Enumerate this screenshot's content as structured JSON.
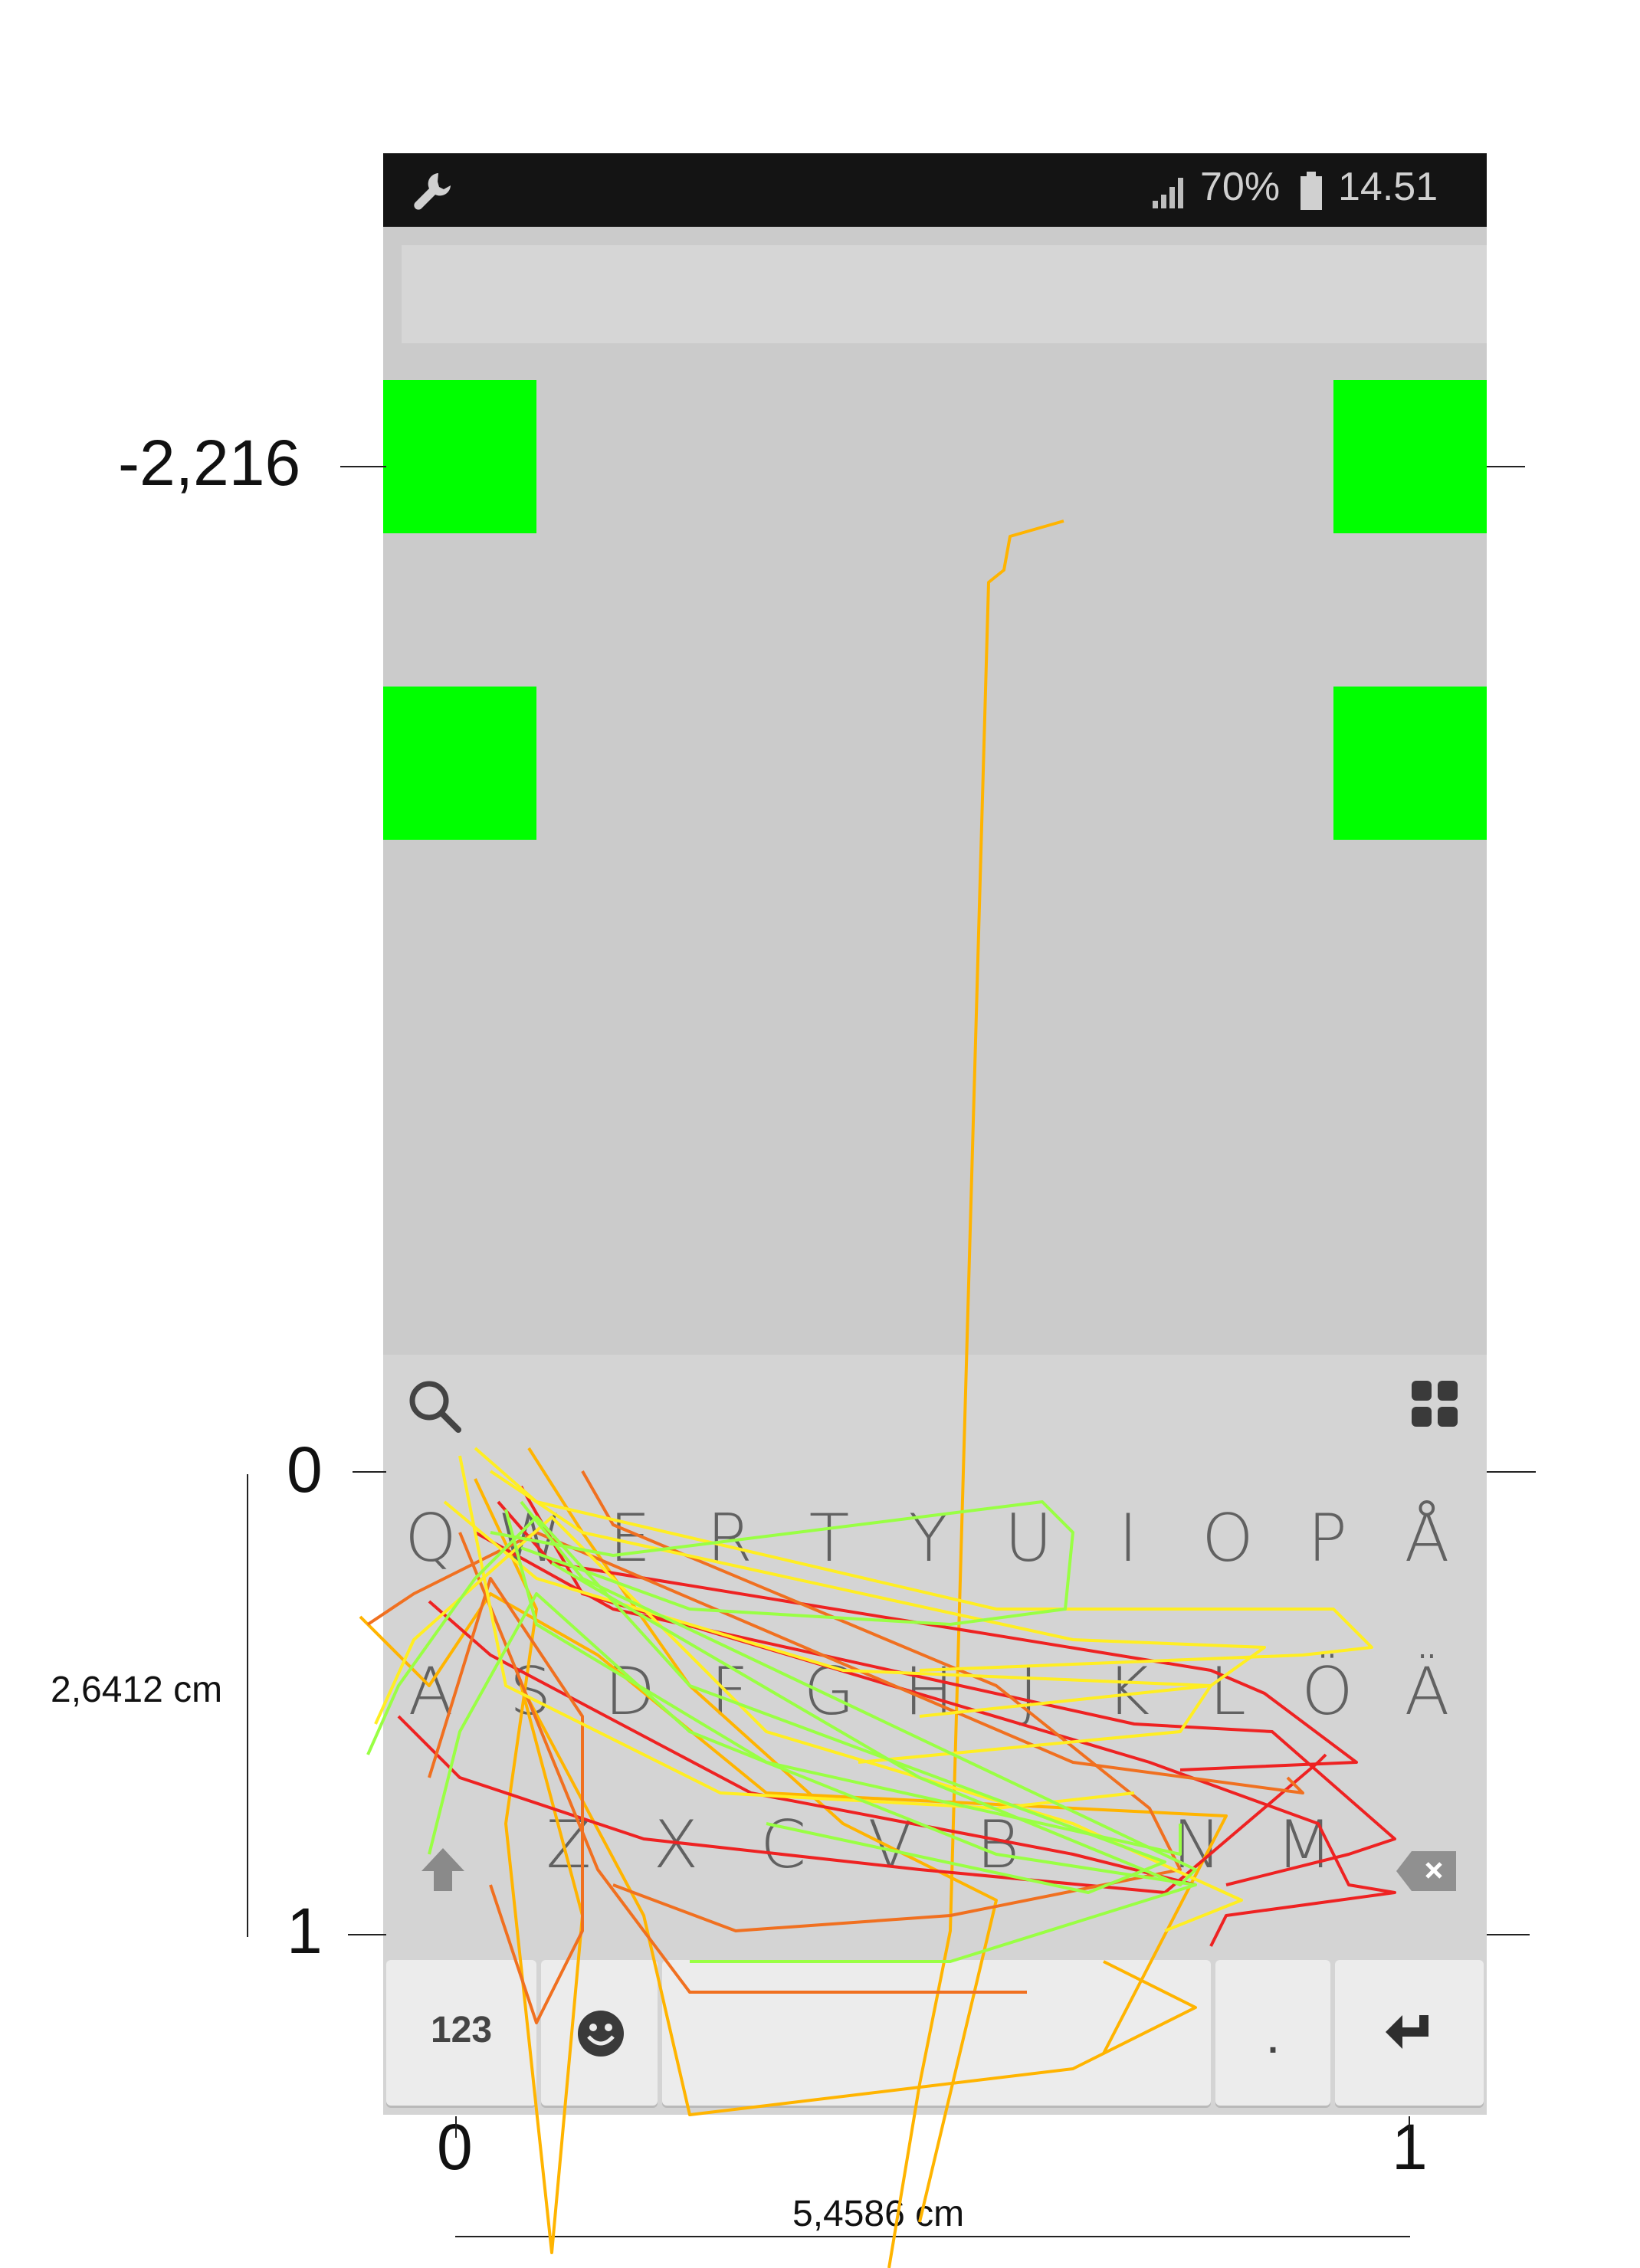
{
  "status_bar": {
    "signal_icon": "signal-bars-icon",
    "battery_percent": "70%",
    "battery_icon": "battery-icon",
    "time": "14.51",
    "left_icon": "wrench-icon"
  },
  "keyboard": {
    "top_left_icon": "search-icon",
    "top_right_icon": "grid-apps-icon",
    "row1": [
      "Q",
      "W",
      "E",
      "R",
      "T",
      "Y",
      "U",
      "I",
      "O",
      "P",
      "Å"
    ],
    "row2": [
      "A",
      "S",
      "D",
      "F",
      "G",
      "H",
      "J",
      "K",
      "L",
      "Ö",
      "Ä"
    ],
    "row3": [
      "Z",
      "X",
      "C",
      "V",
      "B",
      "N",
      "M"
    ],
    "shift_icon": "shift-arrow-icon",
    "backspace_icon": "backspace-icon",
    "numbers_label": "123",
    "emoji_icon": "smiley-icon",
    "period_label": ".",
    "enter_icon": "enter-icon"
  },
  "annotations": {
    "y_top_label": "-2,216",
    "y_zero_label": "0",
    "y_one_label": "1",
    "height_measure": "2,6412 cm",
    "x_zero_label": "0",
    "x_one_label": "1",
    "width_measure": "5,4586 cm"
  },
  "colors": {
    "target_green": "#00ff00",
    "trace_red": "#ee2222",
    "trace_orange": "#f07020",
    "trace_amber": "#ffb400",
    "trace_yellow": "#ffee22",
    "trace_lime": "#99ff44"
  }
}
